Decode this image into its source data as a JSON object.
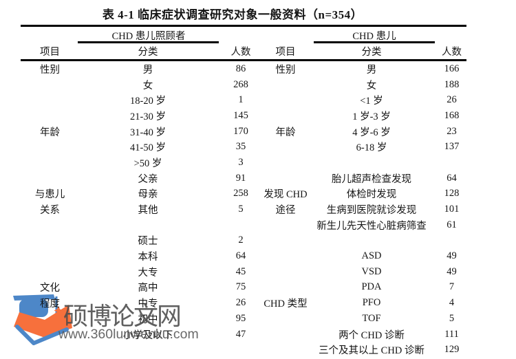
{
  "page": {
    "title": "表 4-1  临床症状调查研究对象一般资料（n=354）"
  },
  "left_table": {
    "group_header": "CHD 患儿照顾者",
    "columns": [
      "项目",
      "分类",
      "人数"
    ],
    "rows": [
      {
        "item": "性别",
        "category": "男",
        "count": "86"
      },
      {
        "item": "",
        "category": "女",
        "count": "268"
      },
      {
        "item": "",
        "category": "18-20 岁",
        "count": "1"
      },
      {
        "item": "",
        "category": "21-30 岁",
        "count": "145"
      },
      {
        "item": "年龄",
        "category": "31-40 岁",
        "count": "170"
      },
      {
        "item": "",
        "category": "41-50 岁",
        "count": "35"
      },
      {
        "item": "",
        "category": ">50 岁",
        "count": "3"
      },
      {
        "item": "",
        "category": "父亲",
        "count": "91"
      },
      {
        "item": "与患儿",
        "category": "母亲",
        "count": "258"
      },
      {
        "item": "关系",
        "category": "其他",
        "count": "5"
      },
      {
        "item": "",
        "category": "",
        "count": ""
      },
      {
        "item": "",
        "category": "硕士",
        "count": "2"
      },
      {
        "item": "",
        "category": "本科",
        "count": "64"
      },
      {
        "item": "",
        "category": "大专",
        "count": "45"
      },
      {
        "item": "文化",
        "category": "高中",
        "count": "75"
      },
      {
        "item": "程度",
        "category": "中专",
        "count": "26"
      },
      {
        "item": "",
        "category": "初中",
        "count": "95"
      },
      {
        "item": "",
        "category": "小学及以下",
        "count": "47"
      },
      {
        "item": "",
        "category": "",
        "count": ""
      }
    ]
  },
  "right_table": {
    "group_header": "CHD 患儿",
    "columns": [
      "项目",
      "分类",
      "人数"
    ],
    "rows": [
      {
        "item": "性别",
        "category": "男",
        "count": "166"
      },
      {
        "item": "",
        "category": "女",
        "count": "188"
      },
      {
        "item": "",
        "category": "<1 岁",
        "count": "26"
      },
      {
        "item": "",
        "category": "1 岁-3 岁",
        "count": "168"
      },
      {
        "item": "年龄",
        "category": "4 岁-6 岁",
        "count": "23"
      },
      {
        "item": "",
        "category": "6-18 岁",
        "count": "137"
      },
      {
        "item": "",
        "category": "",
        "count": ""
      },
      {
        "item": "",
        "category": "胎儿超声检查发现",
        "count": "64"
      },
      {
        "item": "发现 CHD",
        "category": "体检时发现",
        "count": "128"
      },
      {
        "item": "途径",
        "category": "生病到医院就诊发现",
        "count": "101"
      },
      {
        "item": "",
        "category": "新生儿先天性心脏病筛查",
        "count": "61"
      },
      {
        "item": "",
        "category": "",
        "count": ""
      },
      {
        "item": "",
        "category": "ASD",
        "count": "49"
      },
      {
        "item": "",
        "category": "VSD",
        "count": "49"
      },
      {
        "item": "",
        "category": "PDA",
        "count": "7"
      },
      {
        "item": "CHD 类型",
        "category": "PFO",
        "count": "4"
      },
      {
        "item": "",
        "category": "TOF",
        "count": "5"
      },
      {
        "item": "",
        "category": "两个 CHD 诊断",
        "count": "111"
      },
      {
        "item": "",
        "category": "三个及其以上 CHD 诊断",
        "count": "129"
      }
    ]
  },
  "watermark": {
    "site_name": "硕博论文网",
    "site_url": "www.360lunwenku.com",
    "logo_icon": "graduation-cap-book-logo",
    "colors": {
      "blue": "#4d87c8",
      "orange": "#f7703c",
      "name_gray": "#4b4b4b",
      "url_gray": "#585858"
    }
  }
}
